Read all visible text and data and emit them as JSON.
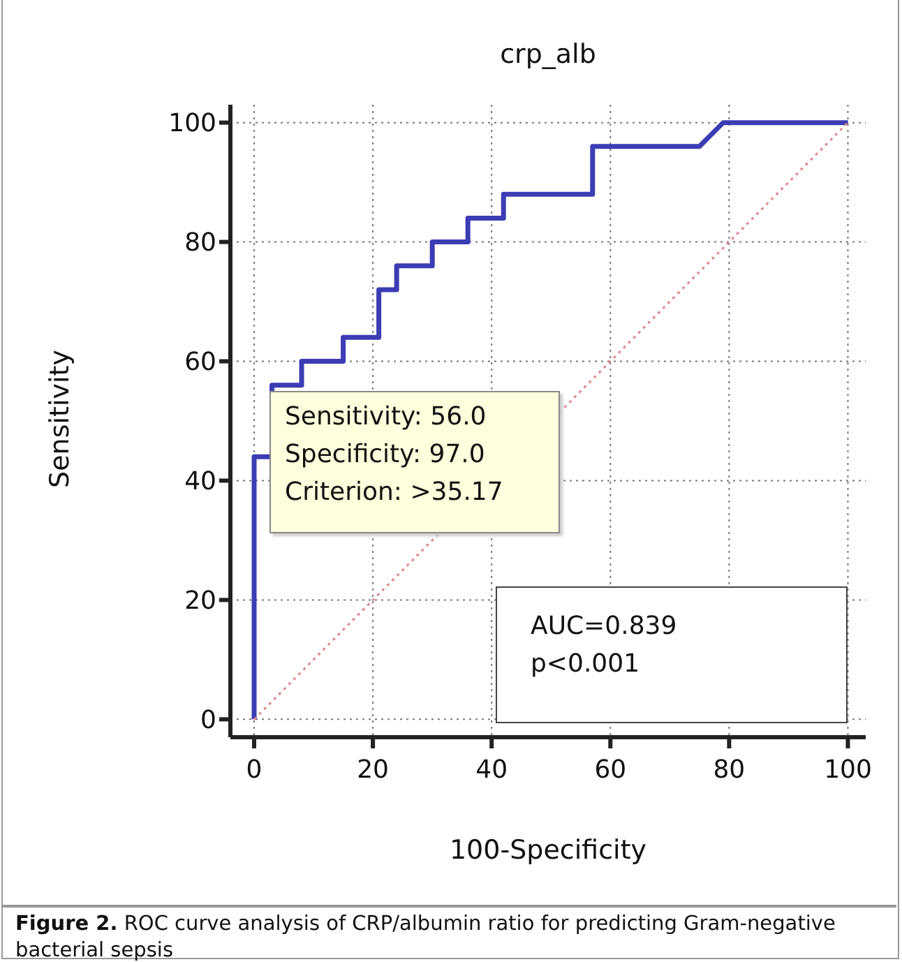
{
  "chart_data": {
    "type": "line",
    "title": "crp_alb",
    "xlabel": "100-Specificity",
    "ylabel": "Sensitivity",
    "xlim": [
      -4,
      103
    ],
    "ylim": [
      -3,
      103
    ],
    "xticks": [
      0,
      20,
      40,
      60,
      80,
      100
    ],
    "yticks": [
      0,
      20,
      40,
      60,
      80,
      100
    ],
    "grid": true,
    "marker": "none",
    "series": [
      {
        "color": "#3c3cb4",
        "line_style": "solid",
        "x": [
          0,
          0,
          3,
          3,
          8,
          8,
          15,
          15,
          21,
          21,
          24,
          24,
          30,
          30,
          36,
          36,
          42,
          42,
          57,
          57,
          75,
          79,
          100
        ],
        "values": [
          0,
          44,
          44,
          56,
          56,
          60,
          60,
          64,
          64,
          72,
          72,
          76,
          76,
          80,
          80,
          84,
          84,
          88,
          88,
          96,
          96,
          100,
          100
        ]
      },
      {
        "color": "#e08888",
        "line_style": "dotted",
        "x": [
          0,
          100
        ],
        "values": [
          0,
          100
        ]
      }
    ],
    "annotations": [
      "Sensitivity: 56.0",
      "Specificity: 97.0",
      "Criterion: >35.17",
      "AUC=0.839",
      "p<0.001",
      "Figure 2. ROC curve analysis of CRP/albumin ratio for predicting Gram-negative bacterial sepsis"
    ]
  }
}
